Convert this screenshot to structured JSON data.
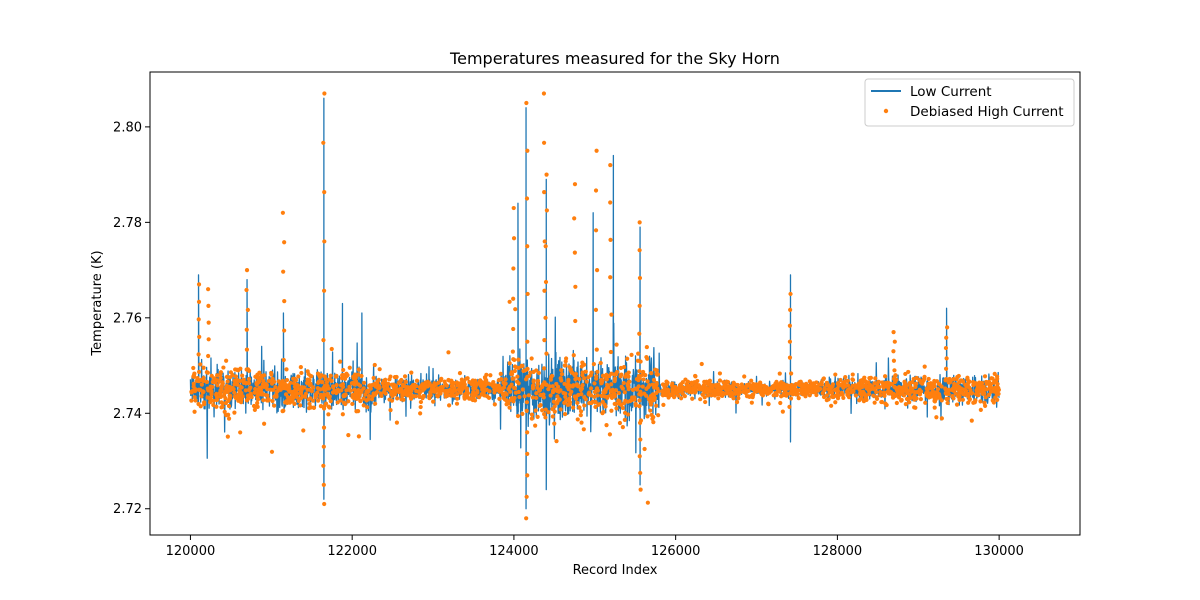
{
  "chart_data": {
    "type": "line",
    "title": "Temperatures measured for the Sky Horn",
    "xlabel": "Record Index",
    "ylabel": "Temperature (K)",
    "xlim": [
      119500,
      131000
    ],
    "ylim": [
      2.7145,
      2.8115
    ],
    "xticks": [
      120000,
      122000,
      124000,
      126000,
      128000,
      130000
    ],
    "xtick_labels": [
      "120000",
      "122000",
      "124000",
      "126000",
      "128000",
      "130000"
    ],
    "yticks": [
      2.72,
      2.74,
      2.76,
      2.78,
      2.8
    ],
    "ytick_labels": [
      "2.72",
      "2.74",
      "2.76",
      "2.78",
      "2.80"
    ],
    "grid": false,
    "legend_position": "top-right",
    "baseline_temperature": 2.745,
    "record_range": [
      120000,
      130000
    ],
    "series": [
      {
        "name": "Low Current",
        "style": "line",
        "color": "#1f77b4",
        "extremes": [
          {
            "x": 120100,
            "y": 2.769
          },
          {
            "x": 120700,
            "y": 2.768
          },
          {
            "x": 121150,
            "y": 2.761
          },
          {
            "x": 121650,
            "y": 2.806
          },
          {
            "x": 121650,
            "y": 2.722
          },
          {
            "x": 121880,
            "y": 2.763
          },
          {
            "x": 122120,
            "y": 2.761
          },
          {
            "x": 124050,
            "y": 2.784
          },
          {
            "x": 124150,
            "y": 2.804
          },
          {
            "x": 124150,
            "y": 2.72
          },
          {
            "x": 124400,
            "y": 2.789
          },
          {
            "x": 124400,
            "y": 2.724
          },
          {
            "x": 124980,
            "y": 2.782
          },
          {
            "x": 125230,
            "y": 2.794
          },
          {
            "x": 125560,
            "y": 2.779
          },
          {
            "x": 125560,
            "y": 2.725
          },
          {
            "x": 127420,
            "y": 2.769
          },
          {
            "x": 127420,
            "y": 2.734
          },
          {
            "x": 129350,
            "y": 2.762
          }
        ]
      },
      {
        "name": "Debiased High Current",
        "style": "scatter",
        "color": "#ff7f0e",
        "extremes": [
          {
            "x": 120100,
            "y": 2.767
          },
          {
            "x": 120220,
            "y": 2.766
          },
          {
            "x": 120700,
            "y": 2.77
          },
          {
            "x": 121150,
            "y": 2.782
          },
          {
            "x": 121650,
            "y": 2.807
          },
          {
            "x": 121650,
            "y": 2.721
          },
          {
            "x": 124000,
            "y": 2.783
          },
          {
            "x": 124160,
            "y": 2.805
          },
          {
            "x": 124160,
            "y": 2.718
          },
          {
            "x": 124380,
            "y": 2.807
          },
          {
            "x": 124400,
            "y": 2.79
          },
          {
            "x": 124750,
            "y": 2.788
          },
          {
            "x": 125020,
            "y": 2.795
          },
          {
            "x": 125200,
            "y": 2.792
          },
          {
            "x": 125560,
            "y": 2.78
          },
          {
            "x": 125560,
            "y": 2.724
          },
          {
            "x": 127420,
            "y": 2.765
          },
          {
            "x": 128700,
            "y": 2.757
          },
          {
            "x": 129350,
            "y": 2.758
          }
        ]
      }
    ]
  }
}
